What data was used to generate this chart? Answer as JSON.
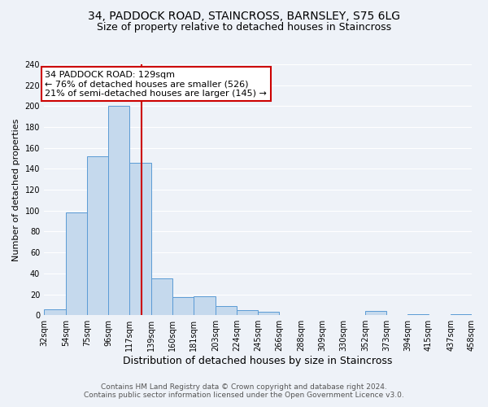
{
  "title": "34, PADDOCK ROAD, STAINCROSS, BARNSLEY, S75 6LG",
  "subtitle": "Size of property relative to detached houses in Staincross",
  "xlabel": "Distribution of detached houses by size in Staincross",
  "ylabel": "Number of detached properties",
  "bar_color": "#c5d9ed",
  "bar_edge_color": "#5b9bd5",
  "background_color": "#eef2f8",
  "grid_color": "#ffffff",
  "vline_x": 129,
  "vline_color": "#cc0000",
  "annotation_title": "34 PADDOCK ROAD: 129sqm",
  "annotation_line1": "← 76% of detached houses are smaller (526)",
  "annotation_line2": "21% of semi-detached houses are larger (145) →",
  "annotation_box_color": "#ffffff",
  "annotation_box_edge": "#cc0000",
  "bin_edges": [
    32,
    54,
    75,
    96,
    117,
    139,
    160,
    181,
    203,
    224,
    245,
    266,
    288,
    309,
    330,
    352,
    373,
    394,
    415,
    437,
    458
  ],
  "bin_heights": [
    6,
    98,
    152,
    200,
    146,
    35,
    17,
    18,
    9,
    5,
    3,
    0,
    0,
    0,
    0,
    4,
    0,
    1,
    0,
    1
  ],
  "ylim": [
    0,
    240
  ],
  "yticks": [
    0,
    20,
    40,
    60,
    80,
    100,
    120,
    140,
    160,
    180,
    200,
    220,
    240
  ],
  "footer_line1": "Contains HM Land Registry data © Crown copyright and database right 2024.",
  "footer_line2": "Contains public sector information licensed under the Open Government Licence v3.0.",
  "title_fontsize": 10,
  "subtitle_fontsize": 9,
  "xlabel_fontsize": 9,
  "ylabel_fontsize": 8,
  "tick_fontsize": 7,
  "footer_fontsize": 6.5,
  "annotation_fontsize": 8
}
